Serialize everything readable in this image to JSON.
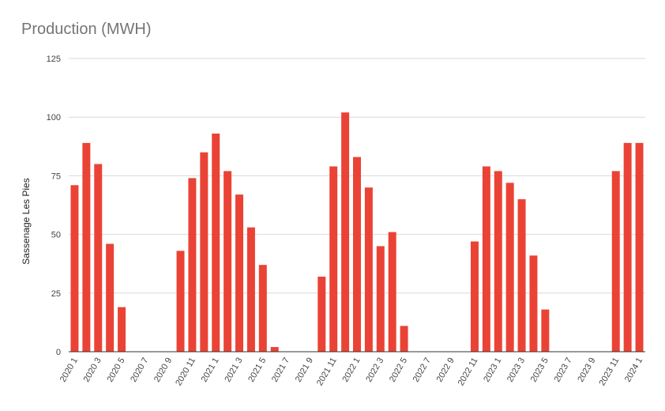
{
  "chart_data": {
    "type": "bar",
    "title": "Production (MWH)",
    "xlabel": "",
    "ylabel": "Sassenage Les Pies",
    "ylim": [
      0,
      125
    ],
    "yticks": [
      0,
      25,
      50,
      75,
      100,
      125
    ],
    "grid": true,
    "legend": "none",
    "bar_color": "#ea4335",
    "categories": [
      "2020 1",
      "2020 2",
      "2020 3",
      "2020 4",
      "2020 5",
      "2020 6",
      "2020 7",
      "2020 8",
      "2020 9",
      "2020 10",
      "2020 11",
      "2020 12",
      "2021 1",
      "2021 2",
      "2021 3",
      "2021 4",
      "2021 5",
      "2021 6",
      "2021 7",
      "2021 8",
      "2021 9",
      "2021 10",
      "2021 11",
      "2021 12",
      "2022 1",
      "2022 2",
      "2022 3",
      "2022 4",
      "2022 5",
      "2022 6",
      "2022 7",
      "2022 8",
      "2022 9",
      "2022 10",
      "2022 11",
      "2022 12",
      "2023 1",
      "2023 2",
      "2023 3",
      "2023 4",
      "2023 5",
      "2023 6",
      "2023 7",
      "2023 8",
      "2023 9",
      "2023 10",
      "2023 11",
      "2023 12",
      "2024 1"
    ],
    "values": [
      71,
      89,
      80,
      46,
      19,
      0,
      0,
      0,
      0,
      43,
      74,
      85,
      93,
      77,
      67,
      53,
      37,
      2,
      0,
      0,
      0,
      32,
      79,
      102,
      83,
      70,
      45,
      51,
      11,
      0,
      0,
      0,
      0,
      0,
      47,
      79,
      77,
      72,
      65,
      41,
      18,
      0,
      0,
      0,
      0,
      0,
      77,
      89,
      89
    ],
    "shown_x_labels": [
      "2020 1",
      "2020 3",
      "2020 5",
      "2020 7",
      "2020 9",
      "2020 11",
      "2021 1",
      "2021 3",
      "2021 5",
      "2021 7",
      "2021 9",
      "2021 11",
      "2022 1",
      "2022 3",
      "2022 5",
      "2022 7",
      "2022 9",
      "2022 11",
      "2023 1",
      "2023 3",
      "2023 5",
      "2023 7",
      "2023 9",
      "2023 11",
      "2024 1"
    ]
  }
}
